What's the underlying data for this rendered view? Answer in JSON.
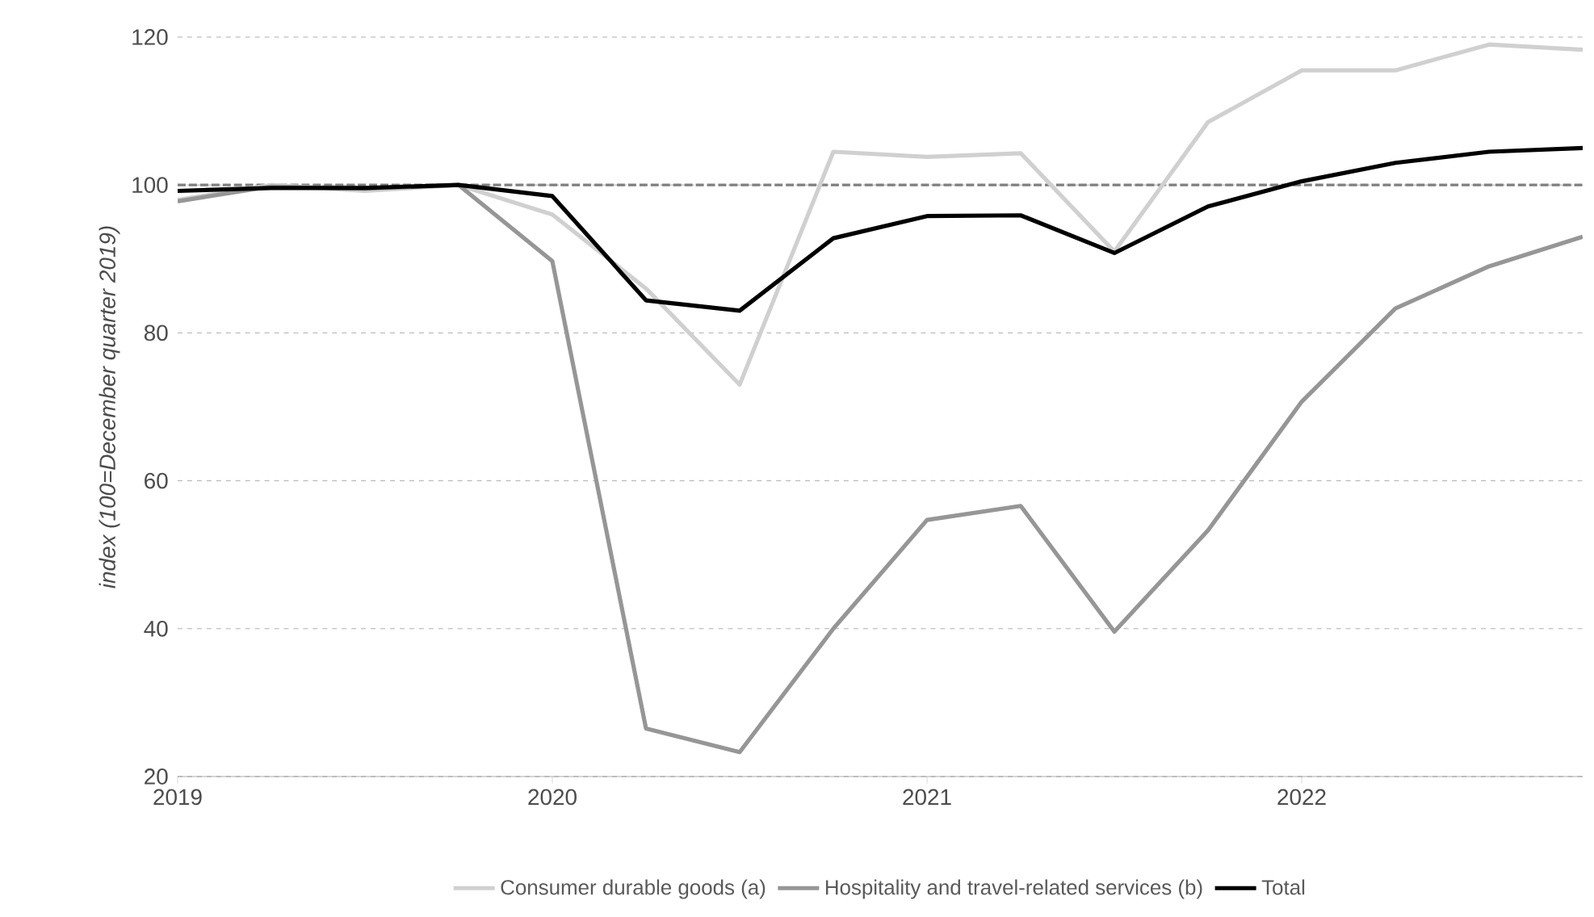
{
  "chart_data": {
    "type": "line",
    "ylabel": "index (100=December quarter 2019)",
    "x": [
      2019,
      2019.25,
      2019.5,
      2019.75,
      2020,
      2020.25,
      2020.5,
      2020.75,
      2021,
      2021.25,
      2021.5,
      2021.75,
      2022,
      2022.25,
      2022.5,
      2022.75
    ],
    "series": [
      {
        "name": "Consumer durable goods (a)",
        "color": "#d0d0d0",
        "values": [
          98,
          100,
          99.2,
          100,
          96,
          86,
          73,
          104.5,
          103.8,
          104.3,
          91,
          108.5,
          115.5,
          115.5,
          119,
          118.3
        ]
      },
      {
        "name": "Hospitality and travel-related services (b)",
        "color": "#969696",
        "values": [
          97.8,
          99.8,
          99.5,
          100,
          89.7,
          26.5,
          23.3,
          40,
          54.7,
          56.6,
          39.6,
          53.3,
          70.7,
          83.3,
          89,
          93
        ]
      },
      {
        "name": "Total",
        "color": "#000000",
        "values": [
          99.2,
          99.6,
          99.6,
          100,
          98.5,
          84.4,
          83,
          92.8,
          95.8,
          95.9,
          90.8,
          97.1,
          100.5,
          103,
          104.5,
          105
        ]
      }
    ],
    "xlim": [
      2019,
      2022.75
    ],
    "xticks": [
      2019,
      2020,
      2021,
      2022
    ],
    "ylim": [
      20,
      120
    ],
    "yticks": [
      20,
      40,
      60,
      80,
      100,
      120
    ],
    "grid": "y",
    "legend": "bottom",
    "marker": "none",
    "line_style": "solid",
    "ref_lines": [
      {
        "axis": "y",
        "value": 100,
        "color": "#7f7f7f",
        "line_style": "dashed"
      }
    ]
  }
}
